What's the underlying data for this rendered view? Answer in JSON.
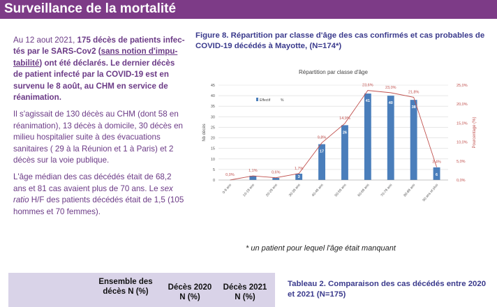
{
  "header": {
    "title": "Surveillance de la mortalité"
  },
  "left_text": {
    "p1": {
      "a": "Au 12 aout 2021, ",
      "b": "175 décès de patients infec-tés par le SARS-Cov2 (",
      "c": "sans notion d'impu-tabilité",
      "d": ") ont été déclarés. Le dernier décès de patient infecté par la COVID-19 est en survenu le 8 août, au CHM en service de réanimation."
    },
    "p2": "Il s'agissait de 130 décès au CHM (dont 58 en réanimation), 13 décès à domicile, 30 décès en milieu hospitalier suite à des évacuations sanitaires ( 29 à la Réunion et 1 à Paris) et 2 décès sur la voie publique.",
    "p3": {
      "a": "L'âge médian des cas décédés était de 68,2 ans et 81 cas avaient plus de 70 ans. Le ",
      "b": "sex ratio",
      "c": " H/F des patients décédés était de 1,5 (105 hommes et 70 femmes)."
    }
  },
  "figure": {
    "title": "Figure 8. Répartition par classe d'âge des cas confirmés et cas probables de COVID-19 décédés à Mayotte, (N=174*)",
    "footnote": "* un patient pour lequel l'âge était manquant"
  },
  "chart_data": {
    "type": "bar",
    "title": "Répartition par classe d'âge",
    "categories": [
      "0-9 ans",
      "10-19 ans",
      "20-29 ans",
      "30-39 ans",
      "40-49 ans",
      "50-59 ans",
      "60-69 ans",
      "70-79 ans",
      "80-89 ans",
      "90 ans et plus"
    ],
    "series": [
      {
        "name": "Effectif",
        "values": [
          0,
          2,
          1,
          3,
          17,
          26,
          41,
          40,
          38,
          6
        ],
        "labels": [
          "",
          "",
          "",
          "3",
          "17",
          "26",
          "41",
          "40",
          "38",
          "6"
        ]
      },
      {
        "name": "%",
        "axis": "right",
        "values": [
          0.0,
          1.1,
          0.6,
          1.7,
          9.8,
          14.9,
          23.6,
          23.0,
          21.8,
          3.4
        ],
        "labels": [
          "0,0%",
          "1,1%",
          "0,6%",
          "1,7%",
          "9,8%",
          "14,9%",
          "23,6%",
          "23,0%",
          "21,8%",
          "3,4%"
        ]
      }
    ],
    "ylabel": "Nb décès",
    "ylabel_right": "Pourcentage (%)",
    "ylim": [
      0,
      45
    ],
    "y_ticks": [
      "0",
      "5",
      "10",
      "15",
      "20",
      "25",
      "30",
      "35",
      "40",
      "45"
    ],
    "ylim_right": [
      0,
      25
    ],
    "y_ticks_right": [
      "0,0%",
      "5,0%",
      "10,0%",
      "15,0%",
      "20,0%",
      "25,0%"
    ],
    "legend": "top-left",
    "grid": true,
    "colors": {
      "bars": "#4a7ebb",
      "line": "#c0504d",
      "pct_labels": "#c0504d"
    }
  },
  "table": {
    "col1": "Ensemble des décès N (%)",
    "col2": "Décès 2020 N (%)",
    "col3": "Décès 2021 N (%)",
    "title": "Tableau 2. Comparaison des cas décédés entre 2020 et 2021 (N=175)"
  }
}
